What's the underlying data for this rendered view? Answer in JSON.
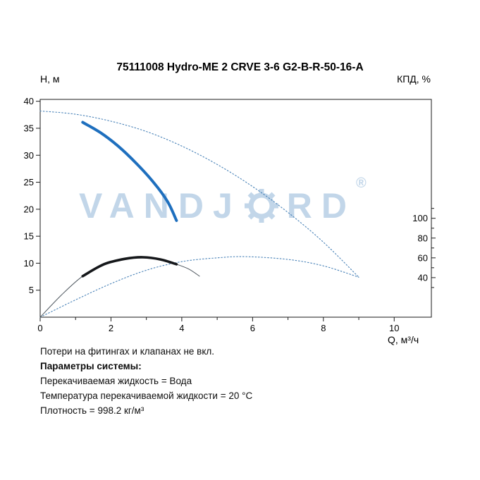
{
  "header": {
    "title": "75111008 Hydro-ME 2 CRVE 3-6 G2-B-R-50-16-A",
    "left_axis_title": "Н, м",
    "right_axis_title": "КПД, %"
  },
  "watermark": {
    "part1": "VANDJ",
    "part2": "RD",
    "registered": "®",
    "color": "#c2d6e9"
  },
  "chart_data": {
    "type": "line",
    "title": "75111008 Hydro-ME 2 CRVE 3-6 G2-B-R-50-16-A",
    "x_axis": {
      "label": "Q, м³/ч",
      "min": 0,
      "max": 11.05,
      "major_ticks": [
        0,
        2,
        4,
        6,
        8,
        10
      ],
      "minor_ticks": [
        1,
        3,
        5,
        7,
        9
      ]
    },
    "y_left_axis": {
      "label": "Н, м",
      "min": 0,
      "max": 40.35,
      "ticks": [
        5,
        10,
        15,
        20,
        25,
        30,
        35,
        40
      ]
    },
    "y_right_axis": {
      "label": "КПД, %",
      "ticks": [
        40,
        60,
        80,
        100
      ],
      "minor_ticks": [
        30,
        50,
        70,
        90,
        110
      ],
      "head_per_percent": 0.1832
    },
    "series": [
      {
        "id": "pump-curve-full",
        "axis": "left",
        "color": "#4a83b8",
        "width": 1.1,
        "dash": "1.6,2.8",
        "points": [
          [
            0,
            38.2
          ],
          [
            1,
            37.6
          ],
          [
            2,
            36.3
          ],
          [
            3,
            34.4
          ],
          [
            4,
            31.7
          ],
          [
            5,
            28.3
          ],
          [
            6,
            24.2
          ],
          [
            7,
            19.4
          ],
          [
            8,
            13.9
          ],
          [
            9,
            7.4
          ]
        ]
      },
      {
        "id": "efficiency-curve-full",
        "axis": "right",
        "color": "#4a83b8",
        "width": 1.1,
        "dash": "1.6,2.8",
        "points": [
          [
            0,
            0
          ],
          [
            1,
            17.5
          ],
          [
            2,
            33.9
          ],
          [
            3,
            47.5
          ],
          [
            4,
            56.2
          ],
          [
            5,
            60.0
          ],
          [
            5.8,
            61.2
          ],
          [
            7,
            58.4
          ],
          [
            8,
            51.9
          ],
          [
            9,
            40.4
          ]
        ]
      },
      {
        "id": "efficiency-curve-pump",
        "axis": "right",
        "color": "#4d565e",
        "width": 1,
        "dash": null,
        "points": [
          [
            0,
            0
          ],
          [
            0.6,
            22.4
          ],
          [
            1.2,
            41.5
          ],
          [
            1.8,
            53.5
          ],
          [
            2.4,
            59.0
          ],
          [
            2.9,
            60.6
          ],
          [
            3.4,
            58.4
          ],
          [
            3.85,
            53.5
          ],
          [
            4.2,
            48.6
          ],
          [
            4.5,
            41.5
          ]
        ]
      },
      {
        "id": "pump-curve-duty",
        "axis": "left",
        "color": "#1e6fbe",
        "width": 4,
        "dash": null,
        "points": [
          [
            1.2,
            36.1
          ],
          [
            1.7,
            34.2
          ],
          [
            2.2,
            31.7
          ],
          [
            2.7,
            28.6
          ],
          [
            3.2,
            25.0
          ],
          [
            3.6,
            21.4
          ],
          [
            3.85,
            17.9
          ]
        ]
      },
      {
        "id": "efficiency-curve-duty",
        "axis": "right",
        "color": "#15171a",
        "width": 3.6,
        "dash": null,
        "points": [
          [
            1.2,
            41.5
          ],
          [
            1.8,
            53.5
          ],
          [
            2.4,
            59.0
          ],
          [
            2.9,
            60.6
          ],
          [
            3.4,
            58.4
          ],
          [
            3.85,
            53.5
          ]
        ]
      }
    ]
  },
  "footer": {
    "note": "Потери на фитингах и клапанах не вкл.",
    "heading": "Параметры системы:",
    "lines": [
      "Перекачиваемая жидкость = Вода",
      "Температура перекачиваемой жидкости = 20 °C",
      "Плотность = 998.2 кг/м³"
    ]
  }
}
